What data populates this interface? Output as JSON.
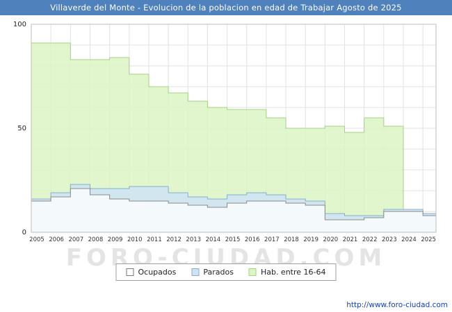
{
  "header": {
    "title": "Villaverde del Monte - Evolucion de la poblacion en edad de Trabajar Agosto de 2025"
  },
  "watermark": "FORO-CIUDAD.COM",
  "footer": {
    "url": "http://www.foro-ciudad.com"
  },
  "colors": {
    "titlebar": "#4f81bd",
    "grid": "#e2e2e2",
    "plot_border": "#bdbdbd",
    "axis_text": "#222222"
  },
  "chart_data": {
    "type": "area",
    "title": "Villaverde del Monte - Evolucion de la poblacion en edad de Trabajar Agosto de 2025",
    "xlabel": "",
    "ylabel": "",
    "ylim": [
      0,
      100
    ],
    "y_ticks": [
      0,
      50,
      100
    ],
    "grid": true,
    "legend_position": "bottom",
    "x": [
      2005,
      2006,
      2007,
      2008,
      2009,
      2010,
      2011,
      2012,
      2013,
      2014,
      2015,
      2016,
      2017,
      2018,
      2019,
      2020,
      2021,
      2022,
      2023,
      2024,
      2025
    ],
    "x_end": 2025.67,
    "series": [
      {
        "name": "Ocupados",
        "stacked": false,
        "fill": "#ffffff",
        "stroke": "#8a8a8a",
        "values": [
          15,
          17,
          21,
          18,
          16,
          15,
          15,
          14,
          13,
          12,
          14,
          15,
          15,
          14,
          13,
          6,
          6,
          7,
          10,
          10,
          8
        ]
      },
      {
        "name": "Parados",
        "stacked": true,
        "stack_on": "Ocupados",
        "fill": "#cfe4f2",
        "stroke": "#84aed0",
        "values": [
          1,
          2,
          2,
          3,
          5,
          7,
          7,
          5,
          4,
          4,
          4,
          4,
          3,
          2,
          2,
          3,
          2,
          1,
          1,
          1,
          1
        ]
      },
      {
        "name": "Hab. entre 16-64",
        "stacked": false,
        "fill": "#dcf5c4",
        "stroke": "#a2d381",
        "values": [
          91,
          91,
          83,
          83,
          84,
          76,
          70,
          67,
          63,
          60,
          59,
          59,
          55,
          50,
          50,
          51,
          48,
          55,
          51,
          10,
          8
        ]
      }
    ]
  }
}
